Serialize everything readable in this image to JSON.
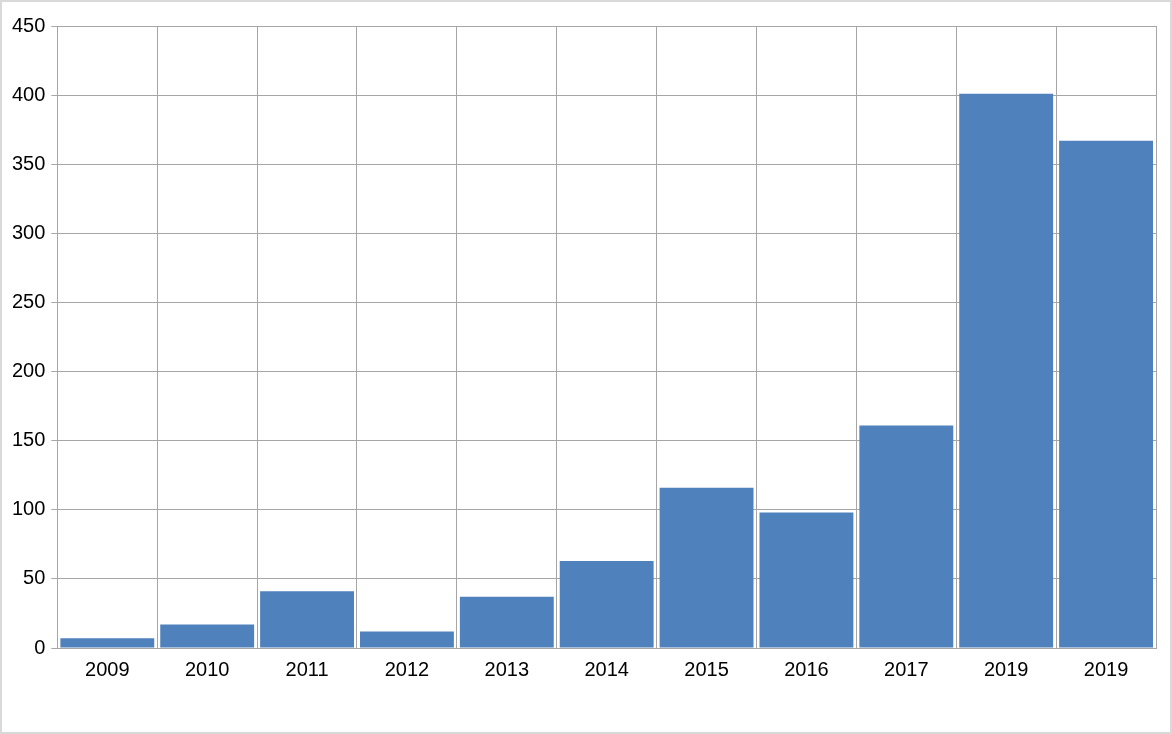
{
  "chart_data": {
    "type": "bar",
    "categories": [
      "2009",
      "2010",
      "2011",
      "2012",
      "2013",
      "2014",
      "2015",
      "2016",
      "2017",
      "2019",
      "2019"
    ],
    "values": [
      7,
      17,
      41,
      12,
      37,
      63,
      116,
      98,
      161,
      401,
      367
    ],
    "color": "#4f81bd",
    "ylim": [
      0,
      450
    ],
    "yticks": [
      0,
      50,
      100,
      150,
      200,
      250,
      300,
      350,
      400,
      450
    ],
    "grid": true,
    "legend": false
  }
}
